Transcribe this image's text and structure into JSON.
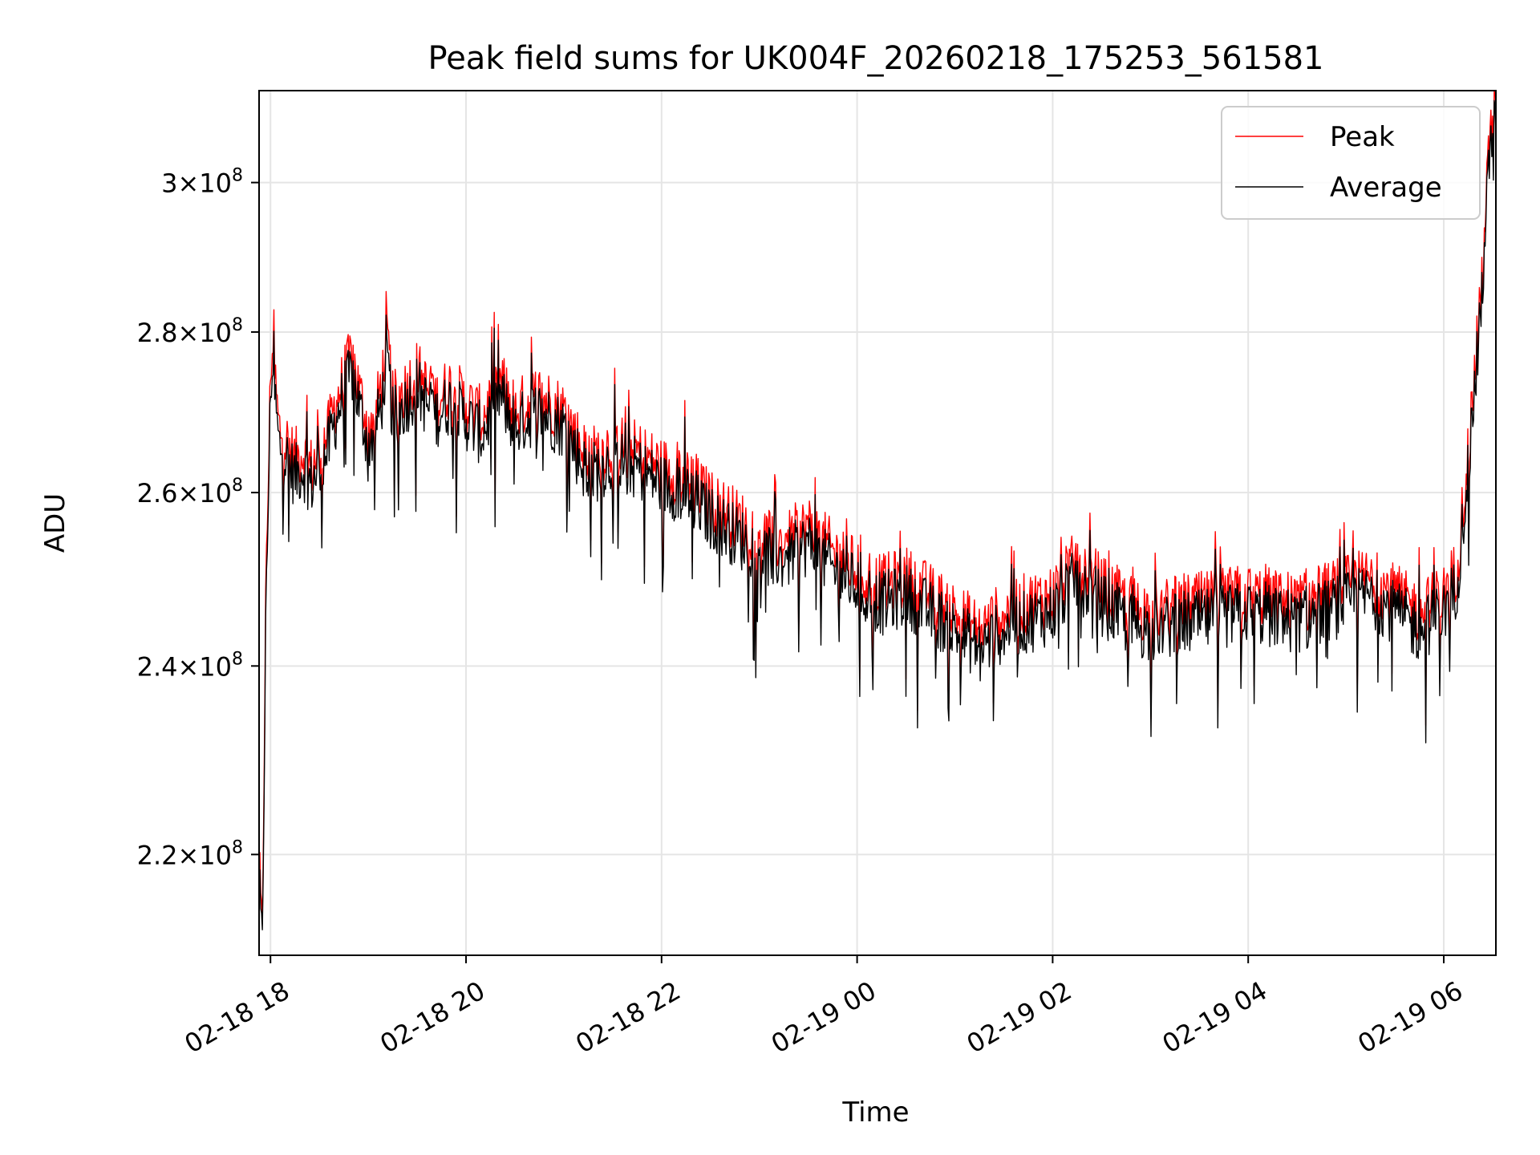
{
  "chart_data": {
    "type": "line",
    "title": "Peak field sums for UK004F_20260218_175253_561581",
    "xlabel": "Time",
    "ylabel": "ADU",
    "yscale": "log",
    "grid": true,
    "legend_position": "top-right",
    "x_range": [
      "2026-02-18 17:53",
      "2026-02-19 06:32"
    ],
    "y_range": [
      210000000,
      313000000
    ],
    "x_ticks": [
      {
        "value": "2026-02-18 18:00",
        "label": "02-18 18"
      },
      {
        "value": "2026-02-18 20:00",
        "label": "02-18 20"
      },
      {
        "value": "2026-02-18 22:00",
        "label": "02-18 22"
      },
      {
        "value": "2026-02-19 00:00",
        "label": "02-19 00"
      },
      {
        "value": "2026-02-19 02:00",
        "label": "02-19 02"
      },
      {
        "value": "2026-02-19 04:00",
        "label": "02-19 04"
      },
      {
        "value": "2026-02-19 06:00",
        "label": "02-19 06"
      }
    ],
    "y_ticks": [
      {
        "value": 220000000,
        "mantissa": "2.2",
        "base": "10",
        "exponent": "8"
      },
      {
        "value": 240000000,
        "mantissa": "2.4",
        "base": "10",
        "exponent": "8"
      },
      {
        "value": 260000000,
        "mantissa": "2.6",
        "base": "10",
        "exponent": "8"
      },
      {
        "value": 280000000,
        "mantissa": "2.8",
        "base": "10",
        "exponent": "8"
      },
      {
        "value": 300000000,
        "mantissa": "3",
        "base": "10",
        "exponent": "8"
      }
    ],
    "series": [
      {
        "name": "Peak",
        "color": "#ff0000",
        "points": [
          [
            "2026-02-18 17:53",
            219000000
          ],
          [
            "2026-02-18 17:55",
            211000000
          ],
          [
            "2026-02-18 17:57",
            246000000
          ],
          [
            "2026-02-18 18:00",
            274000000
          ],
          [
            "2026-02-18 18:01",
            279000000
          ],
          [
            "2026-02-18 18:05",
            268000000
          ],
          [
            "2026-02-18 18:10",
            266000000
          ],
          [
            "2026-02-18 18:15",
            264000000
          ],
          [
            "2026-02-18 18:20",
            265000000
          ],
          [
            "2026-02-18 18:25",
            263000000
          ],
          [
            "2026-02-18 18:30",
            265000000
          ],
          [
            "2026-02-18 18:35",
            267000000
          ],
          [
            "2026-02-18 18:40",
            271000000
          ],
          [
            "2026-02-18 18:45",
            274000000
          ],
          [
            "2026-02-18 18:50",
            277000000
          ],
          [
            "2026-02-18 18:55",
            272000000
          ],
          [
            "2026-02-18 19:00",
            268000000
          ],
          [
            "2026-02-18 19:05",
            270000000
          ],
          [
            "2026-02-18 19:10",
            276000000
          ],
          [
            "2026-02-18 19:12",
            279000000
          ],
          [
            "2026-02-18 19:15",
            271000000
          ],
          [
            "2026-02-18 19:20",
            272000000
          ],
          [
            "2026-02-18 19:30",
            275000000
          ],
          [
            "2026-02-18 19:40",
            271000000
          ],
          [
            "2026-02-18 19:50",
            273000000
          ],
          [
            "2026-02-18 20:00",
            271000000
          ],
          [
            "2026-02-18 20:10",
            269000000
          ],
          [
            "2026-02-18 20:20",
            274000000
          ],
          [
            "2026-02-18 20:30",
            270000000
          ],
          [
            "2026-02-18 20:45",
            272000000
          ],
          [
            "2026-02-18 21:00",
            270000000
          ],
          [
            "2026-02-18 21:15",
            264000000
          ],
          [
            "2026-02-18 21:30",
            266000000
          ],
          [
            "2026-02-18 21:45",
            265000000
          ],
          [
            "2026-02-18 22:00",
            263000000
          ],
          [
            "2026-02-18 22:15",
            262000000
          ],
          [
            "2026-02-18 22:30",
            259000000
          ],
          [
            "2026-02-18 22:45",
            257000000
          ],
          [
            "2026-02-18 23:00",
            255000000
          ],
          [
            "2026-02-18 23:15",
            254000000
          ],
          [
            "2026-02-18 23:30",
            256000000
          ],
          [
            "2026-02-18 23:45",
            253000000
          ],
          [
            "2026-02-19 00:00",
            251000000
          ],
          [
            "2026-02-19 00:15",
            249000000
          ],
          [
            "2026-02-19 00:30",
            250000000
          ],
          [
            "2026-02-19 00:45",
            248000000
          ],
          [
            "2026-02-19 01:00",
            246000000
          ],
          [
            "2026-02-19 01:15",
            244000000
          ],
          [
            "2026-02-19 01:30",
            246000000
          ],
          [
            "2026-02-19 01:45",
            247000000
          ],
          [
            "2026-02-19 02:00",
            248000000
          ],
          [
            "2026-02-19 02:15",
            252000000
          ],
          [
            "2026-02-19 02:30",
            249000000
          ],
          [
            "2026-02-19 02:45",
            247000000
          ],
          [
            "2026-02-19 03:00",
            246000000
          ],
          [
            "2026-02-19 03:30",
            247000000
          ],
          [
            "2026-02-19 04:00",
            248000000
          ],
          [
            "2026-02-19 04:30",
            247000000
          ],
          [
            "2026-02-19 05:00",
            249000000
          ],
          [
            "2026-02-19 05:15",
            250000000
          ],
          [
            "2026-02-19 05:30",
            248000000
          ],
          [
            "2026-02-19 05:45",
            246000000
          ],
          [
            "2026-02-19 06:00",
            248000000
          ],
          [
            "2026-02-19 06:08",
            251000000
          ],
          [
            "2026-02-19 06:15",
            265000000
          ],
          [
            "2026-02-19 06:22",
            282000000
          ],
          [
            "2026-02-19 06:28",
            305000000
          ],
          [
            "2026-02-19 06:32",
            313000000
          ]
        ]
      },
      {
        "name": "Average",
        "color": "#000000",
        "points": [
          [
            "2026-02-18 17:53",
            217000000
          ],
          [
            "2026-02-18 17:55",
            210000000
          ],
          [
            "2026-02-18 17:57",
            243000000
          ],
          [
            "2026-02-18 18:00",
            272000000
          ],
          [
            "2026-02-18 18:01",
            276000000
          ],
          [
            "2026-02-18 18:05",
            266000000
          ],
          [
            "2026-02-18 18:10",
            264000000
          ],
          [
            "2026-02-18 18:15",
            262000000
          ],
          [
            "2026-02-18 18:20",
            263000000
          ],
          [
            "2026-02-18 18:25",
            261000000
          ],
          [
            "2026-02-18 18:30",
            263000000
          ],
          [
            "2026-02-18 18:35",
            265000000
          ],
          [
            "2026-02-18 18:40",
            269000000
          ],
          [
            "2026-02-18 18:45",
            272000000
          ],
          [
            "2026-02-18 18:50",
            275000000
          ],
          [
            "2026-02-18 18:55",
            270000000
          ],
          [
            "2026-02-18 19:00",
            266000000
          ],
          [
            "2026-02-18 19:05",
            268000000
          ],
          [
            "2026-02-18 19:10",
            273000000
          ],
          [
            "2026-02-18 19:12",
            276000000
          ],
          [
            "2026-02-18 19:15",
            269000000
          ],
          [
            "2026-02-18 19:20",
            270000000
          ],
          [
            "2026-02-18 19:30",
            273000000
          ],
          [
            "2026-02-18 19:40",
            269000000
          ],
          [
            "2026-02-18 19:50",
            271000000
          ],
          [
            "2026-02-18 20:00",
            269000000
          ],
          [
            "2026-02-18 20:10",
            267000000
          ],
          [
            "2026-02-18 20:20",
            272000000
          ],
          [
            "2026-02-18 20:30",
            268000000
          ],
          [
            "2026-02-18 20:45",
            270000000
          ],
          [
            "2026-02-18 21:00",
            268000000
          ],
          [
            "2026-02-18 21:15",
            262000000
          ],
          [
            "2026-02-18 21:30",
            264000000
          ],
          [
            "2026-02-18 21:45",
            263000000
          ],
          [
            "2026-02-18 22:00",
            261000000
          ],
          [
            "2026-02-18 22:15",
            260000000
          ],
          [
            "2026-02-18 22:30",
            257000000
          ],
          [
            "2026-02-18 22:45",
            255000000
          ],
          [
            "2026-02-18 23:00",
            253000000
          ],
          [
            "2026-02-18 23:15",
            252000000
          ],
          [
            "2026-02-18 23:30",
            254000000
          ],
          [
            "2026-02-18 23:45",
            251000000
          ],
          [
            "2026-02-19 00:00",
            249000000
          ],
          [
            "2026-02-19 00:15",
            247000000
          ],
          [
            "2026-02-19 00:30",
            248000000
          ],
          [
            "2026-02-19 00:45",
            246000000
          ],
          [
            "2026-02-19 01:00",
            244000000
          ],
          [
            "2026-02-19 01:15",
            242000000
          ],
          [
            "2026-02-19 01:30",
            244000000
          ],
          [
            "2026-02-19 01:45",
            245000000
          ],
          [
            "2026-02-19 02:00",
            246000000
          ],
          [
            "2026-02-19 02:15",
            250000000
          ],
          [
            "2026-02-19 02:30",
            247000000
          ],
          [
            "2026-02-19 02:45",
            245000000
          ],
          [
            "2026-02-19 03:00",
            244000000
          ],
          [
            "2026-02-19 03:30",
            245000000
          ],
          [
            "2026-02-19 04:00",
            246000000
          ],
          [
            "2026-02-19 04:30",
            245000000
          ],
          [
            "2026-02-19 05:00",
            247000000
          ],
          [
            "2026-02-19 05:15",
            248000000
          ],
          [
            "2026-02-19 05:30",
            246000000
          ],
          [
            "2026-02-19 05:45",
            244000000
          ],
          [
            "2026-02-19 06:00",
            246000000
          ],
          [
            "2026-02-19 06:08",
            249000000
          ],
          [
            "2026-02-19 06:15",
            263000000
          ],
          [
            "2026-02-19 06:22",
            280000000
          ],
          [
            "2026-02-19 06:28",
            303000000
          ],
          [
            "2026-02-19 06:32",
            310000000
          ]
        ]
      }
    ]
  }
}
